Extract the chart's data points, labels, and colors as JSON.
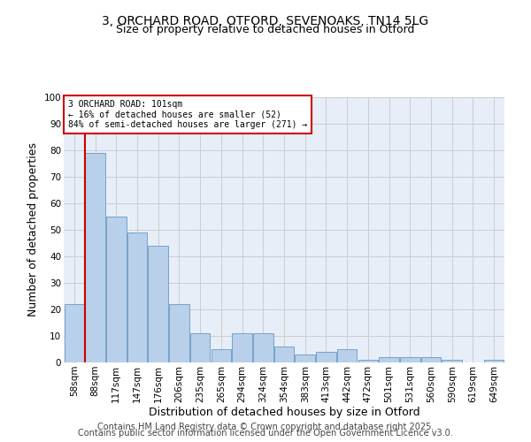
{
  "title_line1": "3, ORCHARD ROAD, OTFORD, SEVENOAKS, TN14 5LG",
  "title_line2": "Size of property relative to detached houses in Otford",
  "xlabel": "Distribution of detached houses by size in Otford",
  "ylabel": "Number of detached properties",
  "bar_labels": [
    "58sqm",
    "88sqm",
    "117sqm",
    "147sqm",
    "176sqm",
    "206sqm",
    "235sqm",
    "265sqm",
    "294sqm",
    "324sqm",
    "354sqm",
    "383sqm",
    "413sqm",
    "442sqm",
    "472sqm",
    "501sqm",
    "531sqm",
    "560sqm",
    "590sqm",
    "619sqm",
    "649sqm"
  ],
  "bar_values": [
    22,
    79,
    55,
    49,
    44,
    22,
    11,
    5,
    11,
    11,
    6,
    3,
    4,
    5,
    1,
    2,
    2,
    2,
    1,
    0,
    1
  ],
  "bar_color": "#b8d0ea",
  "bar_edge_color": "#6899c4",
  "vline_x_index": 1,
  "vline_color": "#cc0000",
  "annotation_text": "3 ORCHARD ROAD: 101sqm\n← 16% of detached houses are smaller (52)\n84% of semi-detached houses are larger (271) →",
  "annotation_box_color": "#ffffff",
  "annotation_box_edge": "#cc0000",
  "ylim": [
    0,
    100
  ],
  "yticks": [
    0,
    10,
    20,
    30,
    40,
    50,
    60,
    70,
    80,
    90,
    100
  ],
  "grid_color": "#cccccc",
  "background_color": "#e8eef8",
  "footer_line1": "Contains HM Land Registry data © Crown copyright and database right 2025.",
  "footer_line2": "Contains public sector information licensed under the Open Government Licence v3.0.",
  "title_fontsize": 10,
  "subtitle_fontsize": 9,
  "axis_label_fontsize": 9,
  "tick_fontsize": 7.5,
  "annotation_fontsize": 7,
  "footer_fontsize": 7
}
